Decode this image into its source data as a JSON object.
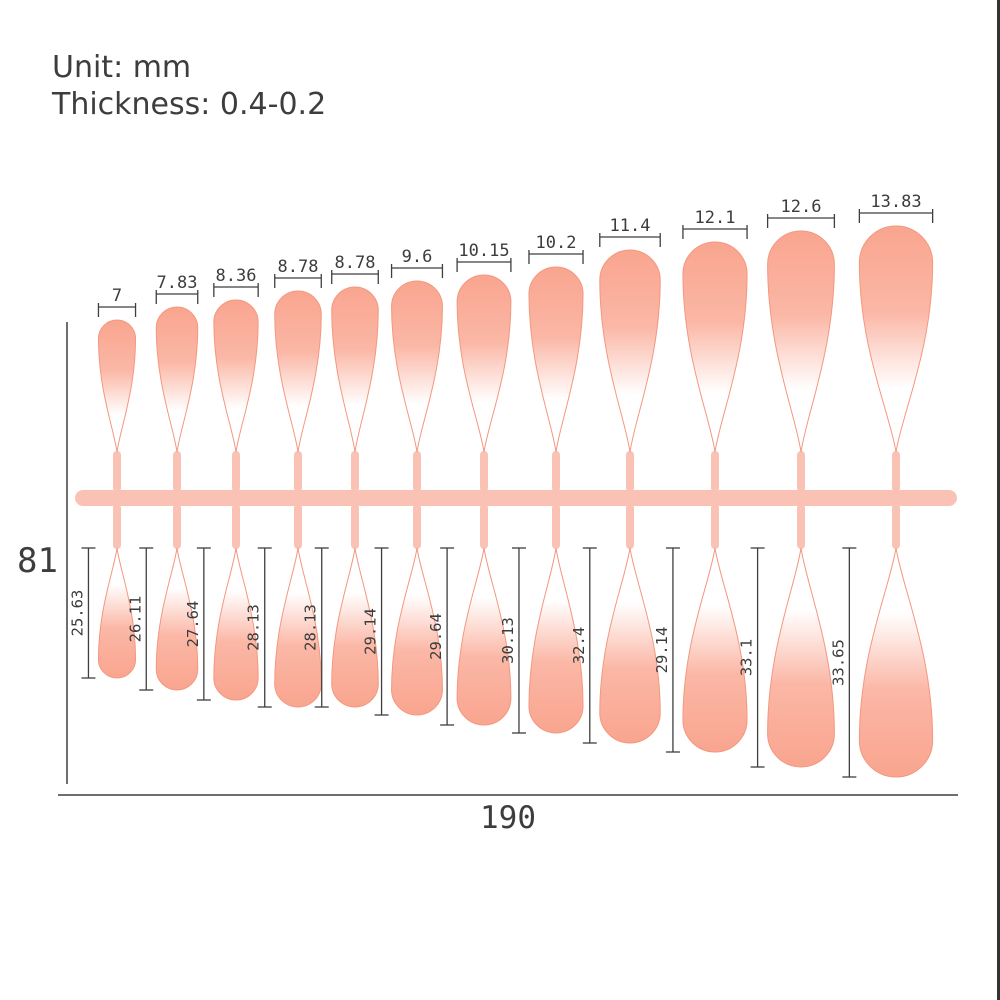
{
  "header": {
    "unit": "Unit: mm",
    "thickness": "Thickness: 0.4-0.2"
  },
  "overall": {
    "width_mm": "190",
    "height_mm": "81"
  },
  "nails": [
    {
      "width": "7",
      "length": "25.63"
    },
    {
      "width": "7.83",
      "length": "26.11"
    },
    {
      "width": "8.36",
      "length": "27.64"
    },
    {
      "width": "8.78",
      "length": "28.13"
    },
    {
      "width": "8.78",
      "length": "28.13"
    },
    {
      "width": "9.6",
      "length": "29.14"
    },
    {
      "width": "10.15",
      "length": "29.64"
    },
    {
      "width": "10.2",
      "length": "30.13"
    },
    {
      "width": "11.4",
      "length": "32.4"
    },
    {
      "width": "12.1",
      "length": "29.14"
    },
    {
      "width": "12.6",
      "length": "33.1"
    },
    {
      "width": "13.83",
      "length": "33.65"
    }
  ],
  "colors": {
    "nail_strong": "#f9a58f",
    "nail_mid": "#fbb7a6",
    "nail_white": "#ffffff",
    "sprue": "#fac2b4",
    "outline": "#f4977f",
    "text": "#3c3c3c",
    "dim_line": "#3f3f3f"
  }
}
